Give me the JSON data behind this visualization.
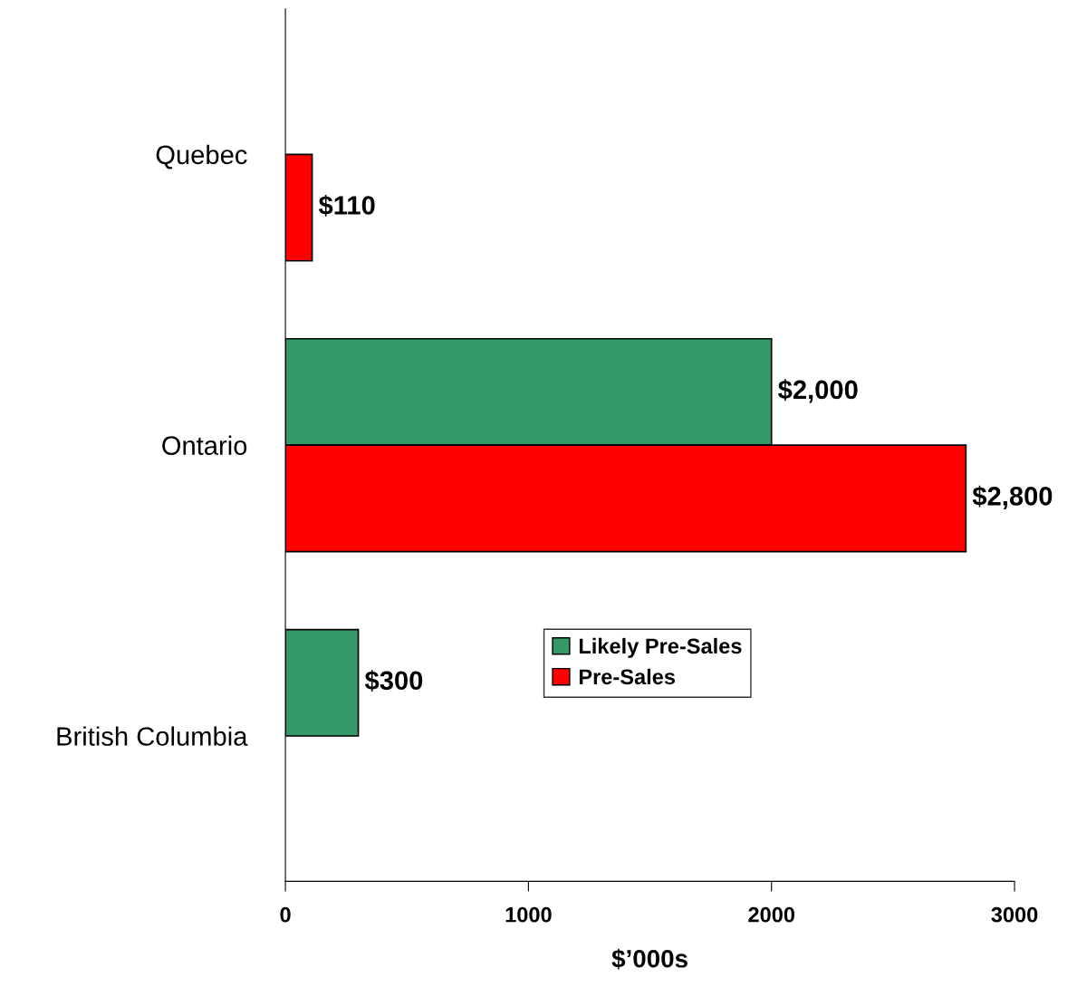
{
  "chart_data": {
    "type": "bar",
    "orientation": "horizontal",
    "categories": [
      "Quebec",
      "Ontario",
      "British Columbia"
    ],
    "series": [
      {
        "name": "Likely Pre-Sales",
        "color": "#339966",
        "values": [
          null,
          2000,
          300
        ],
        "value_labels": [
          null,
          "$2,000",
          "$300"
        ]
      },
      {
        "name": "Pre-Sales",
        "color": "#ff0000",
        "values": [
          110,
          2800,
          null
        ],
        "value_labels": [
          "$110",
          "$2,800",
          null
        ]
      }
    ],
    "xlabel": "$’000s",
    "xlim": [
      0,
      3000
    ],
    "xticks": [
      0,
      1000,
      2000,
      3000
    ],
    "grid": false,
    "legend": "right"
  }
}
